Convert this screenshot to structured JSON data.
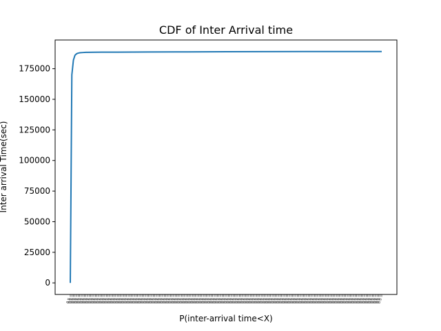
{
  "chart_data": {
    "type": "line",
    "title": "CDF of Inter Arrival time",
    "xlabel": "P(inter-arrival time<X)",
    "ylabel": "Inter arrival Time(sec)",
    "x_tick_count": 200,
    "y_ticks": [
      0,
      25000,
      50000,
      75000,
      100000,
      125000,
      150000,
      175000
    ],
    "y_tick_labels": [
      "0",
      "25000",
      "50000",
      "75000",
      "100000",
      "125000",
      "150000",
      "175000"
    ],
    "ylim": [
      -9450,
      198450
    ],
    "grid": false,
    "series": [
      {
        "color": "#1f77b4",
        "x": [
          0,
          1,
          2,
          3,
          4,
          5,
          6,
          8,
          10,
          15,
          20,
          30,
          50,
          75,
          100,
          125,
          150,
          175,
          199
        ],
        "values": [
          0,
          170000,
          182000,
          186000,
          187200,
          187700,
          188000,
          188200,
          188350,
          188450,
          188500,
          188550,
          188650,
          188750,
          188850,
          188950,
          189000,
          189000,
          189000
        ]
      }
    ]
  }
}
